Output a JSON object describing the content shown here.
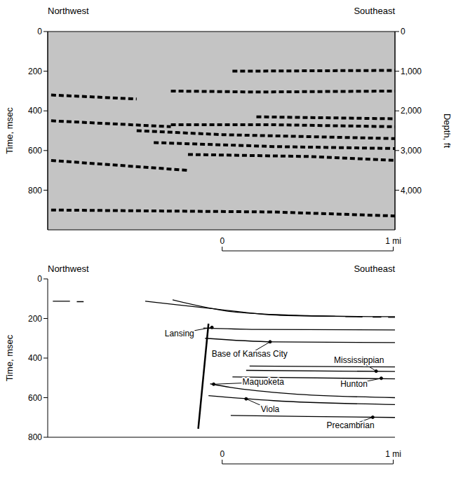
{
  "chart_data": [
    {
      "type": "seismic",
      "side_labels": [
        "Northwest",
        "Southeast"
      ],
      "ylabel": "Time, msec",
      "y2label": "Depth, ft",
      "xlim": [
        -1.02,
        1.01
      ],
      "ylim": [
        0,
        1000
      ],
      "yticks": [
        0,
        200,
        400,
        600,
        800
      ],
      "y2lim": [
        0,
        5000
      ],
      "y2ticks": [
        0,
        {
          "value": 1000,
          "label": "1,000"
        },
        {
          "value": 2000,
          "label": "2,000"
        },
        {
          "value": 3000,
          "label": "3,000"
        },
        {
          "value": 4000,
          "label": "4,000"
        }
      ],
      "scale_bar": {
        "values": [
          0,
          1
        ],
        "labels": [
          "0",
          "1 mi"
        ]
      },
      "series": [
        {
          "color": "#000000",
          "line_style": "dashed",
          "x": [
            0.06,
            1.01
          ],
          "values": [
            200,
            196
          ]
        },
        {
          "color": "#000000",
          "line_style": "dashed",
          "x": [
            -0.3,
            0.2,
            1.01
          ],
          "values": [
            300,
            305,
            300
          ]
        },
        {
          "color": "#000000",
          "line_style": "dashed",
          "x": [
            0.2,
            1.01
          ],
          "values": [
            430,
            440
          ]
        },
        {
          "color": "#000000",
          "line_style": "dashed",
          "x": [
            -0.3,
            0.3,
            1.01
          ],
          "values": [
            470,
            470,
            480
          ]
        },
        {
          "color": "#000000",
          "line_style": "dashed",
          "x": [
            -0.5,
            0.0,
            1.01
          ],
          "values": [
            500,
            520,
            540
          ]
        },
        {
          "color": "#000000",
          "line_style": "dashed",
          "x": [
            -0.4,
            0.3,
            1.01
          ],
          "values": [
            560,
            580,
            590
          ]
        },
        {
          "color": "#000000",
          "line_style": "dashed",
          "x": [
            -0.2,
            0.5,
            1.01
          ],
          "values": [
            620,
            630,
            650
          ]
        },
        {
          "color": "#000000",
          "line_style": "dashed",
          "x": [
            -1.0,
            -0.5
          ],
          "values": [
            320,
            340
          ]
        },
        {
          "color": "#000000",
          "line_style": "dashed",
          "x": [
            -1.0,
            -0.3
          ],
          "values": [
            450,
            480
          ]
        },
        {
          "color": "#000000",
          "line_style": "dashed",
          "x": [
            -1.0,
            -0.2
          ],
          "values": [
            650,
            700
          ]
        },
        {
          "color": "#000000",
          "line_style": "dashed",
          "x": [
            -1.0,
            0.3,
            1.01
          ],
          "values": [
            900,
            910,
            930
          ]
        }
      ]
    },
    {
      "type": "line",
      "side_labels": [
        "Northwest",
        "Southeast"
      ],
      "ylabel": "Time, msec",
      "xlim": [
        -1.02,
        1.01
      ],
      "ylim": [
        0,
        800
      ],
      "yticks": [
        0,
        200,
        400,
        600,
        800
      ],
      "scale_bar": {
        "values": [
          0,
          1
        ],
        "labels": [
          "0",
          "1 mi"
        ]
      },
      "series": [
        {
          "color": "#000000",
          "line_style": "solid",
          "x": [
            -0.99,
            -0.89,
            -0.87,
            -0.85,
            -0.81
          ],
          "values": [
            113,
            113,
            null,
            115,
            115
          ]
        },
        {
          "color": "#000000",
          "line_style": "solid",
          "x": [
            -0.45,
            -0.07,
            0.34,
            1.01
          ],
          "values": [
            113,
            149,
            184,
            191
          ]
        },
        {
          "color": "#000000",
          "line_style": "solid",
          "x": [
            -0.29,
            0.06,
            0.43,
            0.66,
            0.68,
            0.72,
            0.82,
            0.84,
            0.88,
            0.93,
            0.95,
            0.97,
            1.01
          ],
          "values": [
            106,
            166,
            184,
            189,
            null,
            191,
            192,
            null,
            193,
            193,
            null,
            194,
            194
          ]
        },
        {
          "color": "#000000",
          "line_style": "solid",
          "x": [
            -0.11,
            0.2,
            1.01
          ],
          "values": [
            248,
            255,
            258
          ]
        },
        {
          "color": "#000000",
          "line_style": "solid",
          "x": [
            -0.1,
            0.3,
            1.01
          ],
          "values": [
            300,
            318,
            322
          ]
        },
        {
          "color": "#000000",
          "line_style": "solid",
          "x": [
            0.16,
            1.01
          ],
          "values": [
            440,
            445
          ]
        },
        {
          "color": "#000000",
          "line_style": "solid",
          "x": [
            0.14,
            1.01
          ],
          "values": [
            462,
            468
          ]
        },
        {
          "color": "#000000",
          "line_style": "solid",
          "x": [
            0.06,
            1.01
          ],
          "values": [
            495,
            505
          ]
        },
        {
          "color": "#000000",
          "line_style": "solid",
          "x": [
            -0.07,
            0.05,
            0.4,
            1.01
          ],
          "values": [
            530,
            548,
            580,
            600
          ]
        },
        {
          "color": "#000000",
          "line_style": "solid",
          "x": [
            -0.08,
            0.3,
            1.01
          ],
          "values": [
            590,
            615,
            635
          ]
        },
        {
          "color": "#000000",
          "line_style": "solid",
          "x": [
            0.05,
            0.5,
            1.01
          ],
          "values": [
            690,
            695,
            700
          ]
        }
      ],
      "fault": {
        "color": "#000000",
        "x": [
          -0.08,
          -0.14
        ],
        "values": [
          226,
          757
        ]
      },
      "annotations": [
        {
          "text": "Lansing",
          "xy": [
            -0.06,
            245
          ],
          "xytext": [
            -0.25,
            275
          ]
        },
        {
          "text": "Base of Kansas City",
          "xy": [
            0.28,
            318
          ],
          "xytext": [
            0.16,
            379
          ]
        },
        {
          "text": "Mississippian",
          "xy": [
            0.9,
            466
          ],
          "xytext": [
            0.8,
            410
          ]
        },
        {
          "text": "Hunton",
          "xy": [
            0.93,
            502
          ],
          "xytext": [
            0.77,
            531
          ]
        },
        {
          "text": "Maquoketa",
          "xy": [
            -0.05,
            532
          ],
          "xytext": [
            0.24,
            522
          ]
        },
        {
          "text": "Viola",
          "xy": [
            0.14,
            606
          ],
          "xytext": [
            0.28,
            660
          ]
        },
        {
          "text": "Precambrian",
          "xy": [
            0.88,
            699
          ],
          "xytext": [
            0.75,
            740
          ]
        }
      ]
    }
  ]
}
